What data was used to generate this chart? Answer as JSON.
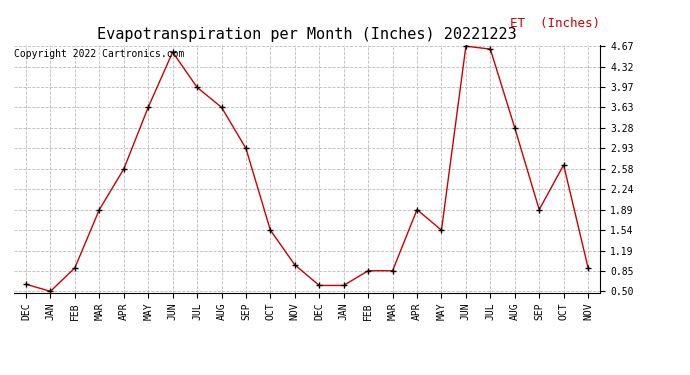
{
  "title": "Evapotranspiration per Month (Inches) 20221223",
  "copyright": "Copyright 2022 Cartronics.com",
  "legend_label": "ET  (Inches)",
  "months": [
    "DEC",
    "JAN",
    "FEB",
    "MAR",
    "APR",
    "MAY",
    "JUN",
    "JUL",
    "AUG",
    "SEP",
    "OCT",
    "NOV",
    "DEC",
    "JAN",
    "FEB",
    "MAR",
    "APR",
    "MAY",
    "JUN",
    "JUL",
    "AUG",
    "SEP",
    "OCT",
    "NOV"
  ],
  "values": [
    0.62,
    0.5,
    0.9,
    1.89,
    2.58,
    3.63,
    4.57,
    3.97,
    3.63,
    2.93,
    1.54,
    0.95,
    0.6,
    0.6,
    0.85,
    0.85,
    1.89,
    1.54,
    4.67,
    4.62,
    3.28,
    1.89,
    2.65,
    0.9
  ],
  "ylim_min": 0.5,
  "ylim_max": 4.67,
  "yticks": [
    0.5,
    0.85,
    1.19,
    1.54,
    1.89,
    2.24,
    2.58,
    2.93,
    3.28,
    3.63,
    3.97,
    4.32,
    4.67
  ],
  "line_color": "#cc0000",
  "marker_color": "black",
  "grid_color": "#bbbbbb",
  "bg_color": "white",
  "title_fontsize": 11,
  "copyright_fontsize": 7,
  "legend_fontsize": 9,
  "axis_fontsize": 7,
  "tick_label_fontfamily": "DejaVu Sans Mono"
}
